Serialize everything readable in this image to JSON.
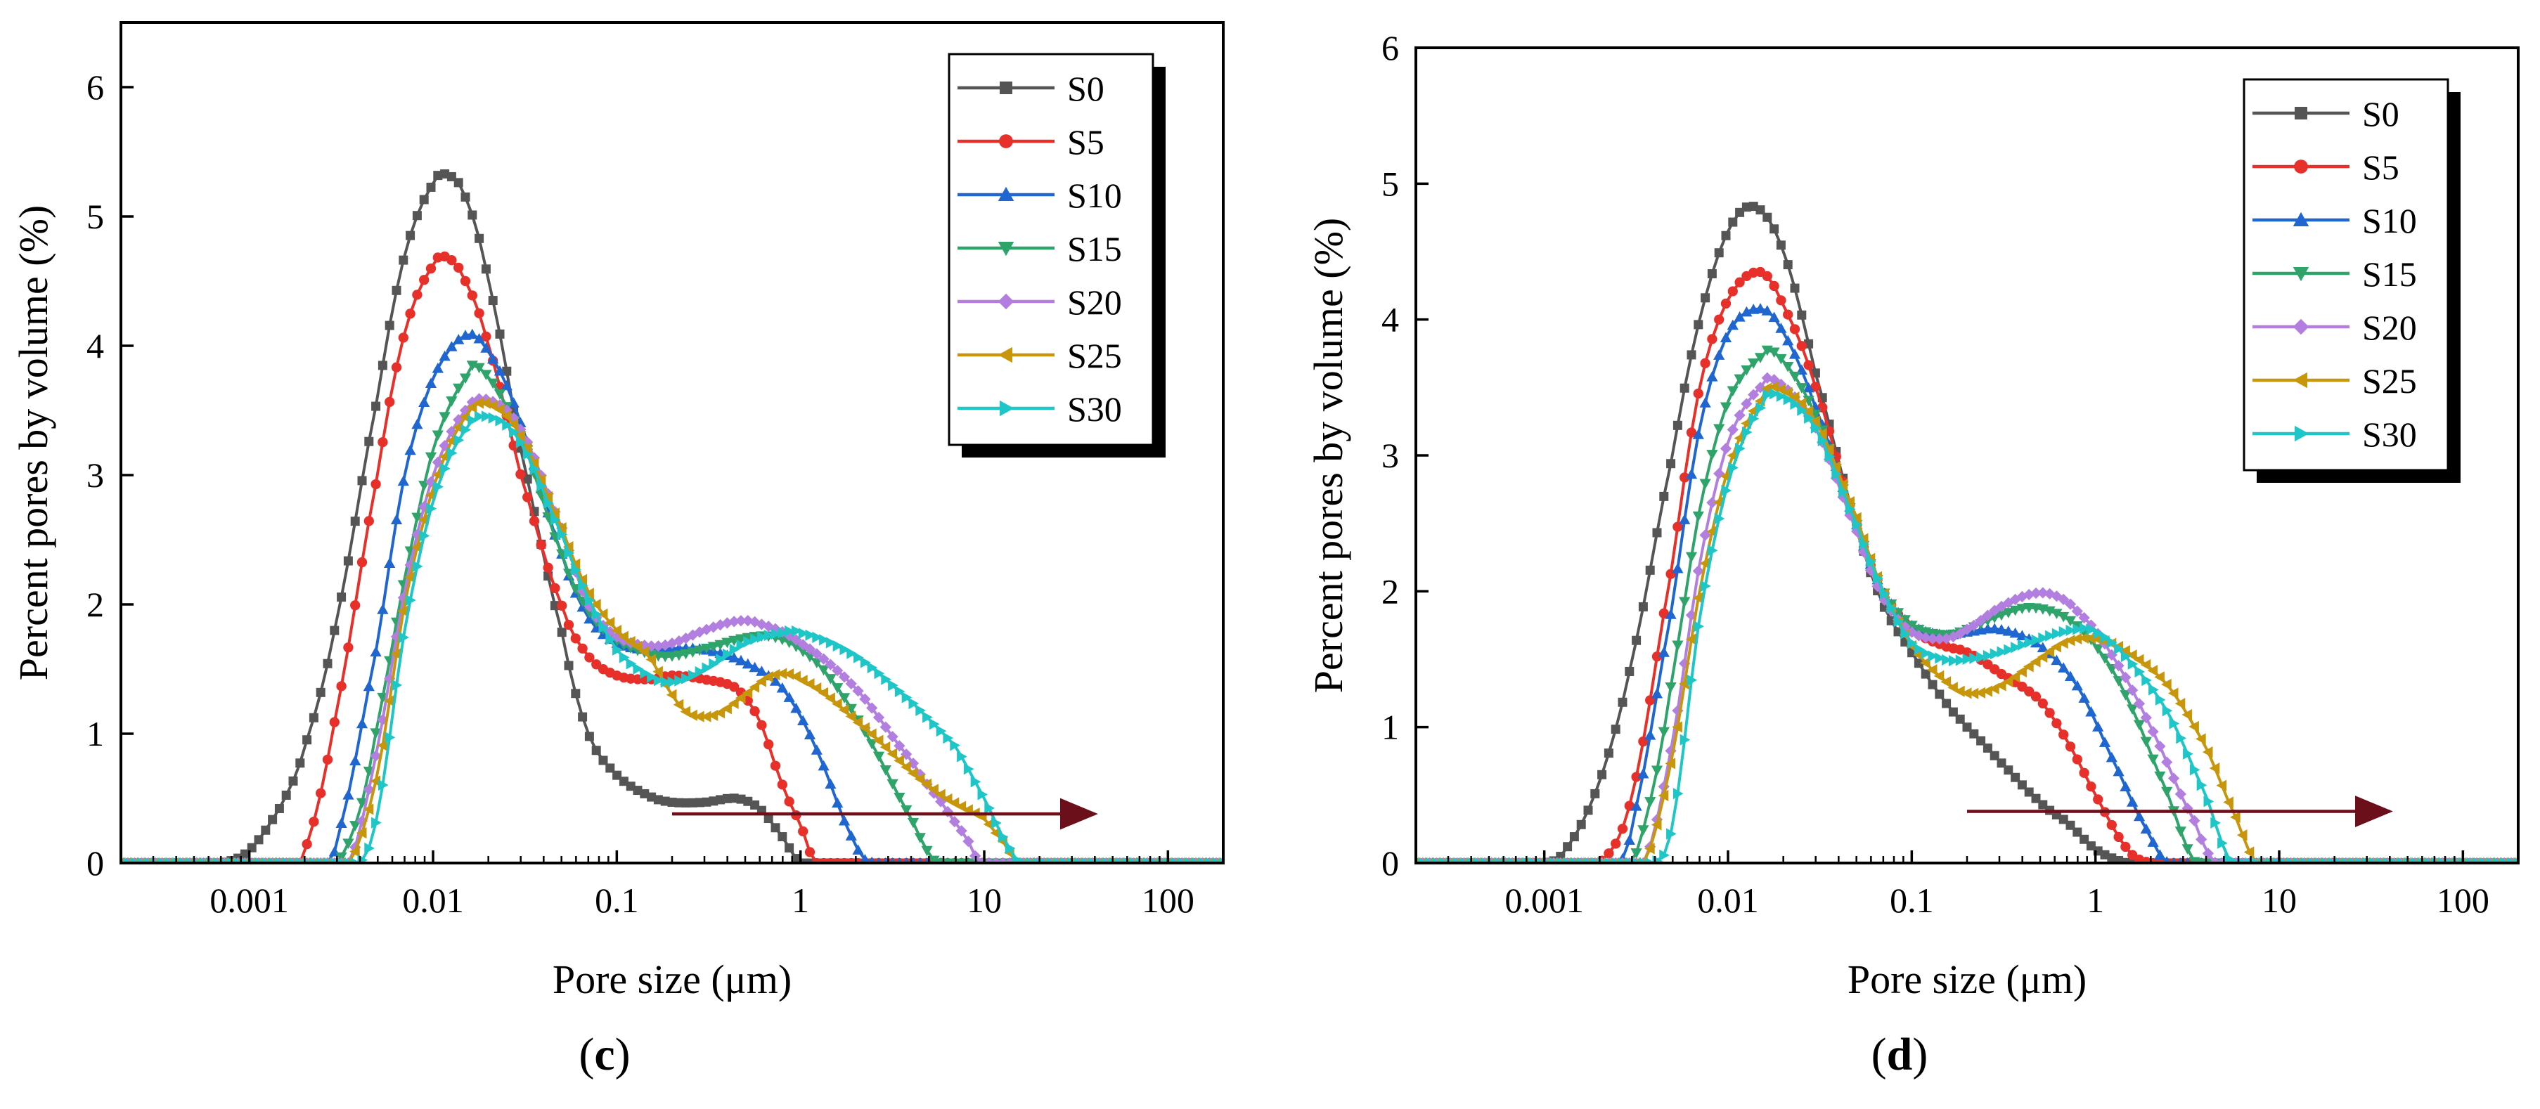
{
  "figure": {
    "panels": [
      "(c)",
      "(d)"
    ]
  },
  "series_colors": {
    "S0": "#555555",
    "S5": "#e8302b",
    "S10": "#1f66d1",
    "S15": "#2ea36a",
    "S20": "#b27ee0",
    "S25": "#c8960a",
    "S30": "#1fc6c8"
  },
  "series_markers": {
    "S0": "square",
    "S5": "circle",
    "S10": "triangle-up",
    "S15": "triangle-down",
    "S20": "diamond",
    "S25": "triangle-left",
    "S30": "triangle-right"
  },
  "arrow_color": "#6b0f1a",
  "chart_data": [
    {
      "type": "line",
      "panel_label": "(c)",
      "panel_letter": "c",
      "xlabel": "Pore size (μm)",
      "ylabel": "Percent pores by volume (%)",
      "xscale": "log",
      "xlim": [
        0.0002,
        200
      ],
      "ylim": [
        0,
        6.5
      ],
      "xticks": [
        0.001,
        0.01,
        0.1,
        1,
        10,
        100
      ],
      "xtick_labels": [
        "0.001",
        "0.01",
        "0.1",
        "1",
        "10",
        "100"
      ],
      "yticks": [
        0,
        1,
        2,
        3,
        4,
        5,
        6
      ],
      "ytick_labels": [
        "0",
        "1",
        "2",
        "3",
        "4",
        "5",
        "6"
      ],
      "legend": [
        "S0",
        "S5",
        "S10",
        "S15",
        "S20",
        "S25",
        "S30"
      ],
      "legend_position": "top-right",
      "annotation": {
        "type": "arrow",
        "from_x": 0.2,
        "to_x": 40,
        "y": 0.38
      },
      "series": [
        {
          "name": "S0",
          "x": [
            0.0002,
            0.0007,
            0.001,
            0.0015,
            0.002,
            0.003,
            0.005,
            0.007,
            0.01,
            0.012,
            0.015,
            0.02,
            0.03,
            0.05,
            0.07,
            0.1,
            0.15,
            0.2,
            0.3,
            0.45,
            0.6,
            0.8,
            1.0,
            200
          ],
          "y": [
            0,
            0,
            0.1,
            0.45,
            0.9,
            1.9,
            3.6,
            4.7,
            5.25,
            5.32,
            5.15,
            4.5,
            3.2,
            1.8,
            1.0,
            0.68,
            0.52,
            0.47,
            0.47,
            0.5,
            0.42,
            0.2,
            0,
            0
          ]
        },
        {
          "name": "S5",
          "x": [
            0.0002,
            0.0018,
            0.002,
            0.003,
            0.005,
            0.007,
            0.01,
            0.012,
            0.015,
            0.02,
            0.03,
            0.05,
            0.07,
            0.1,
            0.15,
            0.2,
            0.3,
            0.45,
            0.6,
            0.8,
            1.0,
            1.2,
            200
          ],
          "y": [
            0,
            0,
            0.1,
            1.2,
            3.0,
            4.1,
            4.62,
            4.68,
            4.5,
            4.0,
            3.0,
            2.0,
            1.6,
            1.45,
            1.42,
            1.45,
            1.42,
            1.35,
            1.1,
            0.6,
            0.3,
            0,
            0
          ]
        },
        {
          "name": "S10",
          "x": [
            0.0002,
            0.0025,
            0.003,
            0.005,
            0.007,
            0.01,
            0.015,
            0.02,
            0.03,
            0.05,
            0.07,
            0.1,
            0.15,
            0.2,
            0.3,
            0.5,
            0.8,
            1.2,
            2.0,
            2.5,
            200
          ],
          "y": [
            0,
            0,
            0.2,
            1.7,
            3.0,
            3.75,
            4.08,
            3.95,
            3.4,
            2.4,
            1.9,
            1.7,
            1.65,
            1.66,
            1.65,
            1.55,
            1.35,
            0.9,
            0.15,
            0,
            0
          ]
        },
        {
          "name": "S15",
          "x": [
            0.0002,
            0.003,
            0.004,
            0.005,
            0.007,
            0.01,
            0.015,
            0.018,
            0.03,
            0.05,
            0.07,
            0.1,
            0.15,
            0.2,
            0.35,
            0.5,
            0.7,
            1.0,
            1.5,
            2.5,
            4.0,
            5.5,
            200
          ],
          "y": [
            0,
            0,
            0.4,
            1.1,
            2.2,
            3.2,
            3.75,
            3.82,
            3.3,
            2.4,
            1.95,
            1.72,
            1.62,
            1.6,
            1.68,
            1.74,
            1.75,
            1.65,
            1.4,
            0.9,
            0.35,
            0,
            0
          ]
        },
        {
          "name": "S20",
          "x": [
            0.0002,
            0.0035,
            0.005,
            0.007,
            0.01,
            0.015,
            0.02,
            0.03,
            0.05,
            0.07,
            0.1,
            0.15,
            0.2,
            0.3,
            0.45,
            0.6,
            1.0,
            2.0,
            4.0,
            6.0,
            8.0,
            9.5,
            200
          ],
          "y": [
            0,
            0,
            0.9,
            2.1,
            3.0,
            3.5,
            3.58,
            3.35,
            2.6,
            2.0,
            1.75,
            1.68,
            1.7,
            1.8,
            1.87,
            1.85,
            1.7,
            1.35,
            0.8,
            0.45,
            0.2,
            0,
            0
          ]
        },
        {
          "name": "S25",
          "x": [
            0.0002,
            0.0035,
            0.005,
            0.007,
            0.01,
            0.015,
            0.02,
            0.03,
            0.05,
            0.07,
            0.1,
            0.15,
            0.2,
            0.25,
            0.35,
            0.5,
            0.7,
            1.0,
            2.0,
            5.0,
            10.0,
            13.0,
            15.0,
            200
          ],
          "y": [
            0,
            0,
            0.7,
            2.0,
            2.9,
            3.45,
            3.55,
            3.3,
            2.6,
            2.1,
            1.8,
            1.6,
            1.3,
            1.15,
            1.15,
            1.3,
            1.45,
            1.42,
            1.1,
            0.6,
            0.35,
            0.15,
            0,
            0
          ]
        },
        {
          "name": "S30",
          "x": [
            0.0002,
            0.004,
            0.005,
            0.007,
            0.01,
            0.015,
            0.02,
            0.03,
            0.05,
            0.07,
            0.1,
            0.15,
            0.2,
            0.3,
            0.5,
            0.8,
            1.0,
            2.0,
            4.0,
            7.0,
            10.0,
            14.0,
            16.0,
            200
          ],
          "y": [
            0,
            0,
            0.4,
            1.8,
            2.8,
            3.35,
            3.45,
            3.25,
            2.55,
            2.05,
            1.65,
            1.45,
            1.4,
            1.5,
            1.7,
            1.78,
            1.78,
            1.6,
            1.25,
            0.9,
            0.5,
            0.1,
            0,
            0
          ]
        }
      ]
    },
    {
      "type": "line",
      "panel_label": "(d)",
      "panel_letter": "d",
      "xlabel": "Pore size (μm)",
      "ylabel": "Percent pores by volume (%)",
      "xscale": "log",
      "xlim": [
        0.0002,
        200
      ],
      "ylim": [
        0,
        6
      ],
      "xticks": [
        0.001,
        0.01,
        0.1,
        1,
        10,
        100
      ],
      "xtick_labels": [
        "0.001",
        "0.01",
        "0.1",
        "1",
        "10",
        "100"
      ],
      "yticks": [
        0,
        1,
        2,
        3,
        4,
        5,
        6
      ],
      "ytick_labels": [
        "0",
        "1",
        "2",
        "3",
        "4",
        "5",
        "6"
      ],
      "legend": [
        "S0",
        "S5",
        "S10",
        "S15",
        "S20",
        "S25",
        "S30"
      ],
      "legend_position": "top-right",
      "annotation": {
        "type": "arrow",
        "from_x": 0.2,
        "to_x": 40,
        "y": 0.38
      },
      "series": [
        {
          "name": "S0",
          "x": [
            0.0002,
            0.001,
            0.0013,
            0.002,
            0.003,
            0.005,
            0.007,
            0.01,
            0.014,
            0.02,
            0.03,
            0.05,
            0.07,
            0.1,
            0.15,
            0.2,
            0.3,
            0.5,
            0.7,
            1.0,
            1.5,
            200
          ],
          "y": [
            0,
            0,
            0.1,
            0.6,
            1.5,
            3.0,
            4.0,
            4.65,
            4.83,
            4.5,
            3.6,
            2.5,
            1.9,
            1.55,
            1.2,
            1.0,
            0.75,
            0.45,
            0.3,
            0.1,
            0,
            0
          ]
        },
        {
          "name": "S5",
          "x": [
            0.0002,
            0.002,
            0.003,
            0.005,
            0.007,
            0.01,
            0.015,
            0.02,
            0.03,
            0.05,
            0.07,
            0.1,
            0.15,
            0.2,
            0.3,
            0.5,
            0.7,
            1.0,
            1.5,
            2.0,
            200
          ],
          "y": [
            0,
            0,
            0.5,
            2.2,
            3.5,
            4.15,
            4.35,
            4.1,
            3.5,
            2.5,
            2.0,
            1.72,
            1.6,
            1.55,
            1.4,
            1.2,
            0.9,
            0.5,
            0.1,
            0,
            0
          ]
        },
        {
          "name": "S10",
          "x": [
            0.0002,
            0.0025,
            0.003,
            0.005,
            0.007,
            0.01,
            0.015,
            0.02,
            0.03,
            0.05,
            0.07,
            0.1,
            0.15,
            0.2,
            0.3,
            0.5,
            0.8,
            1.2,
            2.0,
            2.5,
            200
          ],
          "y": [
            0,
            0,
            0.3,
            1.9,
            3.2,
            3.9,
            4.08,
            3.9,
            3.35,
            2.5,
            2.0,
            1.75,
            1.68,
            1.7,
            1.72,
            1.6,
            1.3,
            0.8,
            0.2,
            0,
            0
          ]
        },
        {
          "name": "S15",
          "x": [
            0.0002,
            0.003,
            0.004,
            0.005,
            0.007,
            0.01,
            0.015,
            0.018,
            0.03,
            0.05,
            0.07,
            0.1,
            0.15,
            0.2,
            0.3,
            0.45,
            0.7,
            1.0,
            1.5,
            2.5,
            3.5,
            200
          ],
          "y": [
            0,
            0,
            0.6,
            1.4,
            2.6,
            3.4,
            3.72,
            3.75,
            3.3,
            2.5,
            2.0,
            1.75,
            1.68,
            1.72,
            1.82,
            1.88,
            1.8,
            1.6,
            1.2,
            0.5,
            0,
            0
          ]
        },
        {
          "name": "S20",
          "x": [
            0.0002,
            0.0035,
            0.005,
            0.007,
            0.01,
            0.015,
            0.018,
            0.03,
            0.05,
            0.07,
            0.1,
            0.15,
            0.2,
            0.3,
            0.45,
            0.6,
            0.8,
            1.2,
            2.0,
            3.5,
            4.5,
            200
          ],
          "y": [
            0,
            0,
            0.9,
            2.2,
            3.1,
            3.5,
            3.55,
            3.2,
            2.45,
            1.95,
            1.7,
            1.65,
            1.72,
            1.88,
            1.98,
            1.97,
            1.85,
            1.55,
            1.0,
            0.3,
            0,
            0
          ]
        },
        {
          "name": "S25",
          "x": [
            0.0002,
            0.0035,
            0.005,
            0.007,
            0.01,
            0.015,
            0.018,
            0.03,
            0.05,
            0.07,
            0.1,
            0.15,
            0.2,
            0.3,
            0.5,
            0.7,
            1.0,
            1.5,
            2.5,
            4.0,
            6.0,
            7.5,
            200
          ],
          "y": [
            0,
            0,
            0.8,
            2.0,
            2.9,
            3.4,
            3.5,
            3.25,
            2.55,
            2.0,
            1.6,
            1.35,
            1.25,
            1.3,
            1.5,
            1.63,
            1.65,
            1.55,
            1.3,
            0.85,
            0.3,
            0,
            0
          ]
        },
        {
          "name": "S30",
          "x": [
            0.0002,
            0.004,
            0.005,
            0.007,
            0.01,
            0.015,
            0.018,
            0.03,
            0.05,
            0.07,
            0.1,
            0.15,
            0.2,
            0.3,
            0.5,
            0.8,
            1.0,
            1.5,
            2.5,
            4.0,
            5.5,
            200
          ],
          "y": [
            0,
            0,
            0.3,
            1.8,
            2.8,
            3.35,
            3.45,
            3.2,
            2.5,
            2.0,
            1.62,
            1.5,
            1.5,
            1.55,
            1.65,
            1.72,
            1.7,
            1.5,
            1.1,
            0.5,
            0,
            0
          ]
        }
      ]
    }
  ]
}
